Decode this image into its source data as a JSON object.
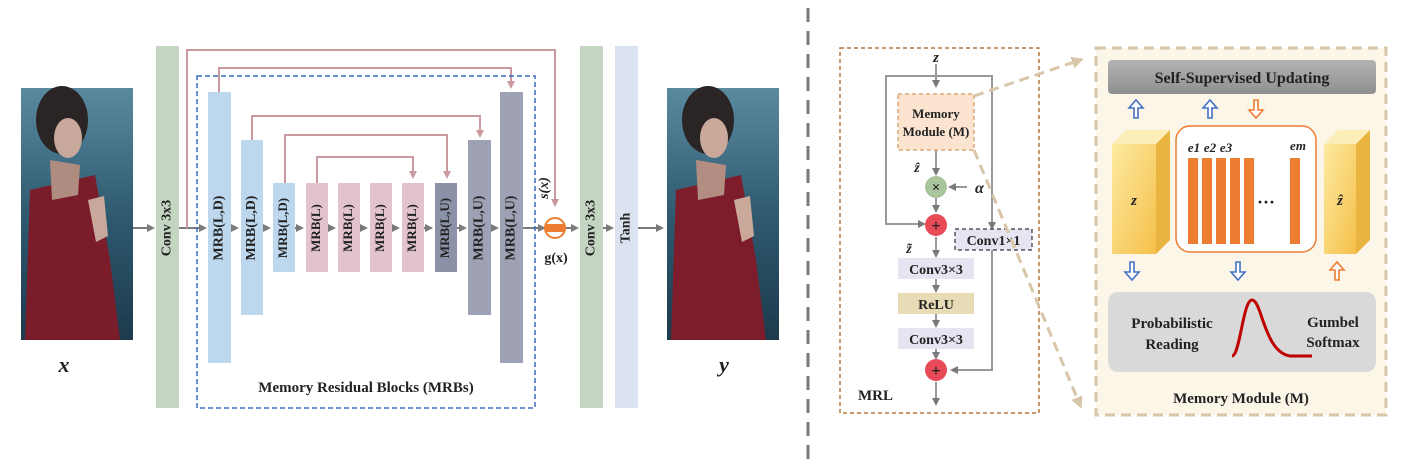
{
  "left": {
    "input_var": "x",
    "output_var": "y",
    "conv_in": "Conv 3x3",
    "conv_out": "Conv 3x3",
    "tanh": "Tanh",
    "mrb_group_label": "Memory Residual Blocks (MRBs)",
    "mrbs": [
      "MRB(L,D)",
      "MRB(L,D)",
      "MRB(L,D)",
      "MRB(L)",
      "MRB(L)",
      "MRB(L)",
      "MRB(L)",
      "MRB(L,U)",
      "MRB(L,U)",
      "MRB(L,U)"
    ],
    "gate_s": "s(x)",
    "gate_g": "g(x)"
  },
  "mrl": {
    "label": "MRL",
    "z": "z",
    "memory_module": [
      "Memory",
      "Module (M)"
    ],
    "zhat": "ẑ",
    "alpha": "α",
    "conv1": "Conv1×1",
    "ztilde": "z̃",
    "conv3_a": "Conv3×3",
    "relu": "ReLU",
    "conv3_b": "Conv3×3"
  },
  "memory": {
    "top_box": "Self-Supervised Updating",
    "z_label": "z",
    "zhat_label": "ẑ",
    "e_labels": [
      "e1",
      "e2",
      "e3",
      "em"
    ],
    "dots": "···",
    "prob_reading": [
      "Probabilistic",
      "Reading"
    ],
    "gumbel": [
      "Gumbel",
      "Softmax"
    ],
    "caption": "Memory Module (M)"
  },
  "colors": {
    "conv": "#c4d6c2",
    "tanh": "#dbe3f1",
    "mrb_down": "#bdd7ee",
    "mrb_mid": "#e2c3cb",
    "mrb_up1": "#8b91a6",
    "mrb_up2": "#9ea2b4",
    "skip": "#c9999f",
    "dash_blue": "#3d6bbf",
    "dash_brown": "#b9773c",
    "orange": "#ed7d31",
    "red": "#e84a57",
    "gumbel": "#c00000"
  }
}
